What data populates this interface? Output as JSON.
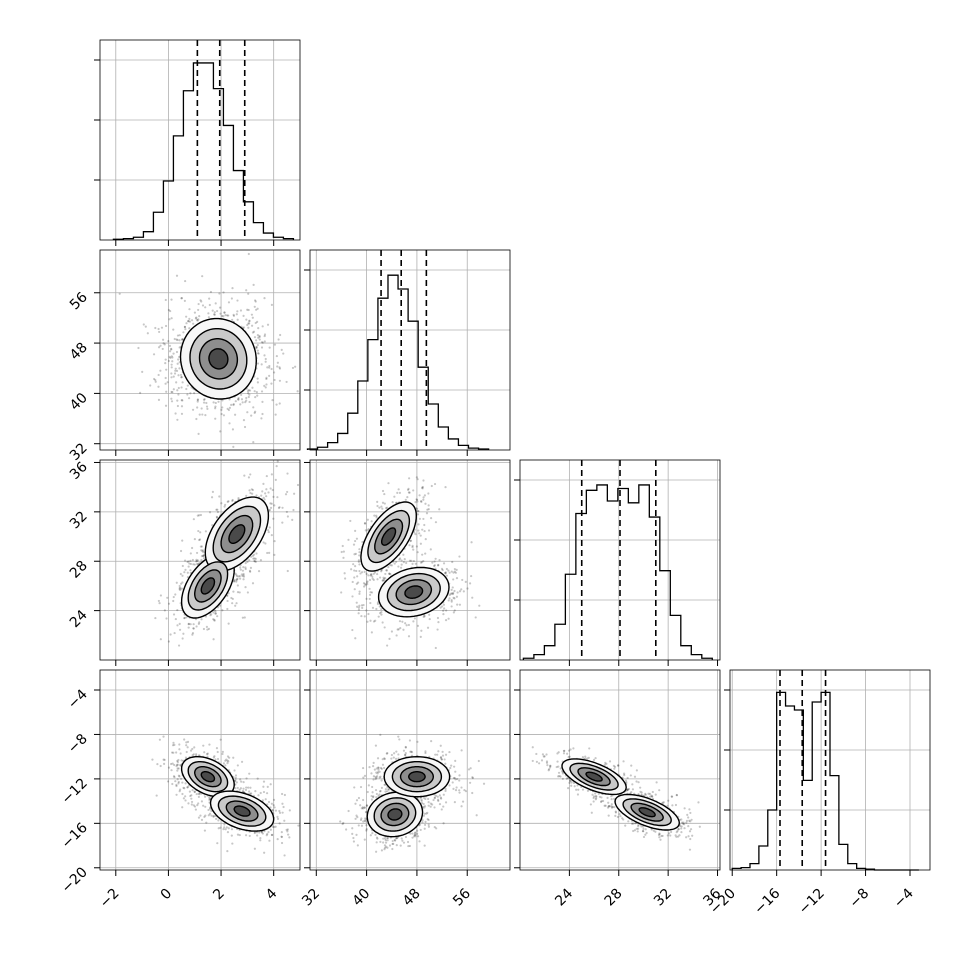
{
  "chart_data": {
    "type": "corner",
    "parameters": [
      "",
      "",
      "",
      ""
    ],
    "grid": true,
    "colors": {
      "line": "#000000",
      "grid": "#b0b0b0",
      "points": "#000000",
      "background": "#ffffff"
    },
    "ranges": [
      [
        -2.6,
        5.0
      ],
      [
        31.0,
        62.8
      ],
      [
        20.0,
        36.2
      ],
      [
        -20.2,
        -2.2
      ]
    ],
    "ticks": [
      [
        -2,
        0,
        2,
        4
      ],
      [
        32,
        40,
        48,
        56
      ],
      [
        24,
        28,
        32,
        36
      ],
      [
        -20,
        -16,
        -12,
        -8,
        -4
      ]
    ],
    "quantiles": [
      [
        1.1,
        1.95,
        2.9
      ],
      [
        42.3,
        45.5,
        49.5
      ],
      [
        25.0,
        28.1,
        31.0
      ],
      [
        -15.7,
        -13.7,
        -11.6
      ]
    ],
    "histograms": [
      {
        "bins": [
          -1.9,
          -1.52,
          -1.14,
          -0.76,
          -0.38,
          0.0,
          0.38,
          0.76,
          1.14,
          1.52,
          1.9,
          2.28,
          2.66,
          3.04,
          3.42,
          3.8,
          4.18,
          4.56
        ],
        "counts": [
          1,
          2,
          4,
          12,
          40,
          85,
          150,
          215,
          255,
          255,
          218,
          165,
          100,
          55,
          25,
          10,
          4,
          2
        ],
        "ymax": 265
      },
      {
        "bins": [
          31.4,
          33.0,
          34.6,
          36.2,
          37.8,
          39.4,
          41.0,
          42.6,
          44.2,
          45.8,
          47.4,
          49.0,
          50.6,
          52.2,
          53.8,
          55.4,
          57.0,
          58.6
        ],
        "counts": [
          1,
          3,
          8,
          18,
          40,
          75,
          120,
          165,
          190,
          175,
          140,
          90,
          50,
          25,
          12,
          5,
          2,
          1
        ],
        "ymax": 200
      },
      {
        "bins": [
          20.7,
          21.55,
          22.4,
          23.25,
          24.1,
          24.95,
          25.8,
          26.65,
          27.5,
          28.35,
          29.2,
          30.05,
          30.9,
          31.75,
          32.6,
          33.45,
          34.3,
          35.15
        ],
        "counts": [
          1,
          3,
          8,
          20,
          48,
          82,
          95,
          98,
          89,
          96,
          88,
          98,
          80,
          50,
          25,
          8,
          3,
          1
        ],
        "ymax": 103
      },
      {
        "bins": [
          -19.6,
          -18.8,
          -18.0,
          -17.2,
          -16.4,
          -15.6,
          -14.8,
          -14.0,
          -13.2,
          -12.4,
          -11.6,
          -10.8,
          -10.0,
          -9.2,
          -8.4,
          -7.6,
          -6.8,
          -6.0,
          -5.2,
          -4.4,
          -3.6
        ],
        "counts": [
          2,
          3,
          8,
          30,
          75,
          222,
          205,
          200,
          112,
          210,
          222,
          118,
          32,
          8,
          2,
          1,
          0,
          0,
          0,
          0,
          0
        ],
        "ymax": 230
      }
    ],
    "pairs": [
      {
        "row": 1,
        "col": 0,
        "blobs": [
          {
            "cx": 1.9,
            "cy": 45.5,
            "sx": 0.72,
            "sy": 3.2,
            "rho": -0.05,
            "w": 1.0
          }
        ]
      },
      {
        "row": 2,
        "col": 0,
        "blobs": [
          {
            "cx": 1.5,
            "cy": 26.0,
            "sx": 0.5,
            "sy": 1.3,
            "rho": 0.5,
            "w": 0.55
          },
          {
            "cx": 2.6,
            "cy": 30.2,
            "sx": 0.6,
            "sy": 1.5,
            "rho": 0.5,
            "w": 0.45
          }
        ]
      },
      {
        "row": 2,
        "col": 1,
        "blobs": [
          {
            "cx": 43.5,
            "cy": 30.0,
            "sx": 2.2,
            "sy": 1.4,
            "rho": 0.6,
            "w": 0.5
          },
          {
            "cx": 47.5,
            "cy": 25.5,
            "sx": 2.8,
            "sy": 1.0,
            "rho": 0.2,
            "w": 0.5
          }
        ]
      },
      {
        "row": 3,
        "col": 0,
        "blobs": [
          {
            "cx": 1.5,
            "cy": -11.8,
            "sx": 0.5,
            "sy": 0.9,
            "rho": -0.4,
            "w": 0.5
          },
          {
            "cx": 2.8,
            "cy": -14.9,
            "sx": 0.6,
            "sy": 0.9,
            "rho": -0.4,
            "w": 0.5
          }
        ]
      },
      {
        "row": 3,
        "col": 1,
        "blobs": [
          {
            "cx": 44.5,
            "cy": -15.2,
            "sx": 2.2,
            "sy": 1.0,
            "rho": 0.1,
            "w": 0.5
          },
          {
            "cx": 48.0,
            "cy": -11.8,
            "sx": 2.6,
            "sy": 0.9,
            "rho": 0.0,
            "w": 0.5
          }
        ]
      },
      {
        "row": 3,
        "col": 2,
        "blobs": [
          {
            "cx": 26.0,
            "cy": -11.8,
            "sx": 1.3,
            "sy": 0.8,
            "rho": -0.6,
            "w": 0.5
          },
          {
            "cx": 30.3,
            "cy": -15.0,
            "sx": 1.3,
            "sy": 0.8,
            "rho": -0.6,
            "w": 0.5
          }
        ]
      }
    ]
  }
}
